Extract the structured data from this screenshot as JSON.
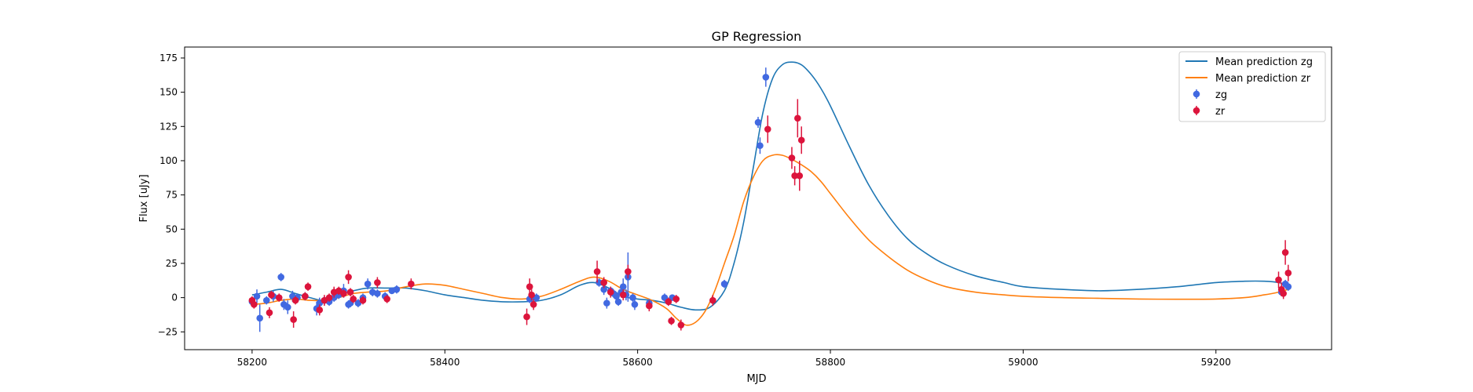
{
  "chart_data": {
    "type": "scatter",
    "title": "GP Regression",
    "xlabel": "MJD",
    "ylabel": "Flux [uJy]",
    "xlim": [
      58130,
      59320
    ],
    "ylim": [
      -38,
      183
    ],
    "xticks": [
      58200,
      58400,
      58600,
      58800,
      59000,
      59200
    ],
    "yticks": [
      -25,
      0,
      25,
      50,
      75,
      100,
      125,
      150,
      175
    ],
    "grid": false,
    "legend_position": "top-right",
    "colors": {
      "mean_zg": "#1f77b4",
      "mean_zr": "#ff7f0e",
      "zg": "#4169e1",
      "zr": "#dc143c"
    },
    "lines": [
      {
        "name": "Mean prediction zg",
        "color": "#1f77b4",
        "x": [
          58200,
          58215,
          58230,
          58245,
          58260,
          58275,
          58290,
          58305,
          58320,
          58340,
          58360,
          58380,
          58400,
          58420,
          58440,
          58460,
          58480,
          58500,
          58520,
          58540,
          58555,
          58570,
          58585,
          58600,
          58615,
          58630,
          58645,
          58660,
          58675,
          58690,
          58700,
          58710,
          58720,
          58730,
          58740,
          58750,
          58760,
          58770,
          58780,
          58790,
          58800,
          58820,
          58840,
          58860,
          58880,
          58900,
          58920,
          58950,
          58980,
          59000,
          59040,
          59080,
          59120,
          59160,
          59200,
          59230,
          59250,
          59265,
          59275
        ],
        "y": [
          2,
          4,
          6,
          3,
          0,
          -2,
          2,
          5,
          7,
          7,
          7,
          5,
          2,
          0,
          -2,
          -3,
          -3,
          -2,
          2,
          9,
          11,
          7,
          1,
          -1,
          -2,
          -4,
          -7,
          -9,
          -7,
          5,
          25,
          55,
          95,
          135,
          160,
          170,
          172,
          170,
          163,
          153,
          140,
          110,
          82,
          60,
          43,
          32,
          24,
          16,
          11,
          8,
          6,
          5,
          6,
          8,
          11,
          12,
          12,
          11,
          9
        ]
      },
      {
        "name": "Mean prediction zr",
        "color": "#ff7f0e",
        "x": [
          58200,
          58215,
          58230,
          58245,
          58260,
          58275,
          58290,
          58305,
          58320,
          58340,
          58360,
          58380,
          58400,
          58420,
          58440,
          58460,
          58480,
          58500,
          58520,
          58540,
          58555,
          58570,
          58585,
          58600,
          58615,
          58630,
          58640,
          58650,
          58660,
          58670,
          58680,
          58690,
          58700,
          58710,
          58720,
          58730,
          58740,
          58750,
          58760,
          58770,
          58780,
          58790,
          58800,
          58820,
          58840,
          58860,
          58880,
          58900,
          58920,
          58950,
          58980,
          59000,
          59040,
          59080,
          59120,
          59160,
          59200,
          59230,
          59250,
          59265,
          59275
        ],
        "y": [
          -5,
          -4,
          -2,
          -1,
          -2,
          -2,
          0,
          3,
          4,
          5,
          8,
          10,
          9,
          6,
          3,
          0,
          -1,
          1,
          6,
          12,
          15,
          12,
          6,
          2,
          -2,
          -8,
          -15,
          -20,
          -18,
          -10,
          5,
          25,
          45,
          70,
          88,
          100,
          104,
          104,
          101,
          97,
          92,
          85,
          76,
          58,
          42,
          30,
          20,
          13,
          8,
          4,
          2,
          1,
          0,
          -0.5,
          -1,
          -1.2,
          -1,
          0,
          2,
          4,
          6
        ]
      }
    ],
    "series": [
      {
        "name": "zg",
        "color": "#4169e1",
        "x": [
          58200,
          58205,
          58208,
          58215,
          58222,
          58230,
          58233,
          58237,
          58242,
          58247,
          58255,
          58267,
          58270,
          58275,
          58280,
          58285,
          58290,
          58295,
          58300,
          58302,
          58310,
          58315,
          58320,
          58325,
          58330,
          58338,
          58345,
          58350,
          58488,
          58490,
          58495,
          58560,
          58565,
          58568,
          58572,
          58575,
          58578,
          58580,
          58583,
          58585,
          58588,
          58590,
          58595,
          58597,
          58612,
          58628,
          58636,
          58690,
          58725,
          58727,
          58733,
          59268,
          59272,
          59275
        ],
        "y": [
          -3,
          1,
          -15,
          -2,
          1,
          15,
          -5,
          -7,
          1,
          0,
          1,
          -8,
          -4,
          -2,
          -3,
          0,
          2,
          5,
          -5,
          -4,
          -4,
          0,
          10,
          4,
          3,
          1,
          5,
          6,
          -1,
          1,
          0,
          11,
          6,
          -4,
          5,
          3,
          1,
          -3,
          4,
          8,
          2,
          15,
          0,
          -5,
          -4,
          0,
          0,
          10,
          128,
          111,
          161,
          4,
          10,
          8
        ],
        "err": [
          3,
          5,
          10,
          3,
          4,
          3,
          4,
          5,
          4,
          3,
          3,
          5,
          4,
          3,
          3,
          3,
          3,
          5,
          3,
          3,
          3,
          3,
          4,
          3,
          3,
          3,
          2,
          3,
          3,
          3,
          3,
          3,
          4,
          4,
          3,
          3,
          3,
          3,
          4,
          6,
          4,
          18,
          3,
          4,
          3,
          3,
          2,
          3,
          4,
          6,
          7,
          3,
          3,
          3
        ]
      },
      {
        "name": "zr",
        "color": "#dc143c",
        "x": [
          58200,
          58202,
          58218,
          58220,
          58228,
          58243,
          58245,
          58255,
          58258,
          58270,
          58275,
          58280,
          58285,
          58290,
          58295,
          58300,
          58302,
          58305,
          58315,
          58330,
          58340,
          58365,
          58485,
          58488,
          58490,
          58492,
          58558,
          58565,
          58572,
          58585,
          58590,
          58612,
          58632,
          58635,
          58640,
          58645,
          58678,
          58735,
          58760,
          58763,
          58766,
          58768,
          58770,
          59265,
          59268,
          59270,
          59272,
          59275
        ],
        "y": [
          -2,
          -5,
          -11,
          2,
          0,
          -16,
          -2,
          1,
          8,
          -9,
          -2,
          0,
          4,
          5,
          3,
          15,
          4,
          -1,
          -2,
          11,
          -1,
          10,
          -14,
          8,
          2,
          -5,
          19,
          11,
          4,
          2,
          19,
          -6,
          -3,
          -17,
          -1,
          -20,
          -2,
          123,
          102,
          89,
          131,
          89,
          115,
          13,
          6,
          3,
          33,
          18
        ],
        "err": [
          3,
          3,
          4,
          3,
          3,
          6,
          3,
          3,
          3,
          4,
          4,
          3,
          4,
          3,
          3,
          5,
          3,
          3,
          3,
          4,
          3,
          4,
          6,
          6,
          4,
          4,
          8,
          4,
          4,
          4,
          5,
          4,
          3,
          3,
          3,
          4,
          4,
          10,
          8,
          7,
          14,
          11,
          10,
          6,
          5,
          4,
          9,
          6
        ]
      }
    ],
    "legend": [
      {
        "label": "Mean prediction zg",
        "kind": "line",
        "color": "#1f77b4"
      },
      {
        "label": "Mean prediction zr",
        "kind": "line",
        "color": "#ff7f0e"
      },
      {
        "label": "zg",
        "kind": "marker",
        "color": "#4169e1"
      },
      {
        "label": "zr",
        "kind": "marker",
        "color": "#dc143c"
      }
    ]
  }
}
